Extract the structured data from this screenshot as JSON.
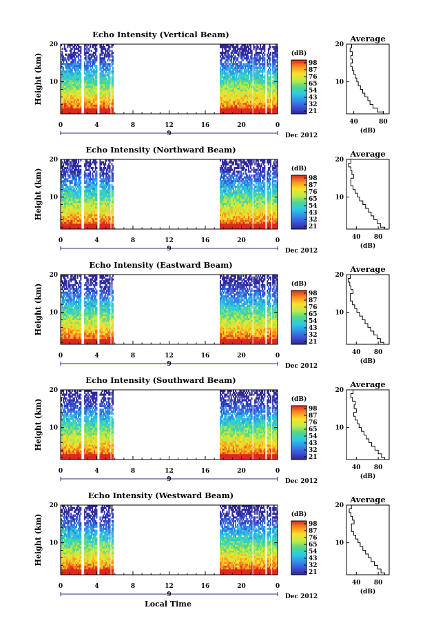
{
  "figure": {
    "xlabel": "Local Time",
    "month_label": "Dec 2012",
    "day_label": "9"
  },
  "chart_data": [
    {
      "type": "heatmap",
      "title": "Echo Intensity (Vertical Beam)",
      "ylabel": "Height (km)",
      "x_ticks": [
        "0",
        "4",
        "8",
        "12",
        "16",
        "20",
        "0"
      ],
      "y_ticks": [
        "20",
        "10"
      ],
      "xlim": [
        0,
        24
      ],
      "ylim": [
        1.5,
        20
      ],
      "data_segments_hours": [
        [
          0,
          2.2
        ],
        [
          2.6,
          4.0
        ],
        [
          4.3,
          5.5
        ],
        [
          5.6,
          5.8
        ],
        [
          17.6,
          21.1
        ],
        [
          21.3,
          22.6
        ],
        [
          22.8,
          23.2
        ],
        [
          23.4,
          24
        ]
      ],
      "colorbar": {
        "label": "(dB)",
        "ticks": [
          "98",
          "87",
          "76",
          "65",
          "54",
          "43",
          "32",
          "21"
        ],
        "range": [
          21,
          98
        ]
      },
      "average_profile": {
        "title": "Average",
        "xlabel": "(dB)",
        "x_ticks": [
          "40",
          "80"
        ],
        "xlim": [
          30,
          88
        ],
        "y_ticks": [
          "20",
          "10"
        ],
        "height_km": [
          1.5,
          2,
          3,
          4,
          5,
          6,
          7,
          8,
          9,
          10,
          11,
          12,
          13,
          14,
          15,
          16,
          17,
          18,
          19,
          20
        ],
        "value_db": [
          88,
          80,
          72,
          66,
          62,
          59,
          55,
          52,
          49,
          46,
          44,
          42,
          40,
          38,
          36,
          38,
          36,
          38,
          35,
          37
        ]
      }
    },
    {
      "type": "heatmap",
      "title": "Echo Intensity (Northward Beam)",
      "ylabel": "Height (km)",
      "x_ticks": [
        "0",
        "4",
        "8",
        "12",
        "16",
        "20",
        "0"
      ],
      "y_ticks": [
        "20",
        "10"
      ],
      "xlim": [
        0,
        24
      ],
      "ylim": [
        1.5,
        20
      ],
      "data_segments_hours": [
        [
          0,
          2.2
        ],
        [
          2.6,
          4.0
        ],
        [
          4.3,
          5.5
        ],
        [
          5.6,
          5.8
        ],
        [
          17.6,
          21.1
        ],
        [
          21.3,
          22.6
        ],
        [
          22.8,
          23.2
        ],
        [
          23.4,
          24
        ]
      ],
      "colorbar": {
        "label": "(dB)",
        "ticks": [
          "98",
          "87",
          "76",
          "65",
          "54",
          "43",
          "32",
          "21"
        ],
        "range": [
          21,
          98
        ]
      },
      "average_profile": {
        "title": "Average",
        "xlabel": "(dB)",
        "x_ticks": [
          "40",
          "80"
        ],
        "xlim": [
          22,
          100
        ],
        "y_ticks": [
          "20",
          "10"
        ],
        "height_km": [
          1.5,
          2,
          3,
          4,
          5,
          6,
          7,
          8,
          9,
          10,
          11,
          12,
          13,
          14,
          15,
          16,
          17,
          18,
          19,
          20
        ],
        "value_db": [
          96,
          92,
          84,
          78,
          72,
          67,
          62,
          57,
          52,
          46,
          42,
          38,
          34,
          30,
          30,
          35,
          32,
          30,
          26,
          30
        ]
      }
    },
    {
      "type": "heatmap",
      "title": "Echo Intensity (Eastward Beam)",
      "ylabel": "Height (km)",
      "x_ticks": [
        "0",
        "4",
        "8",
        "12",
        "16",
        "20",
        "0"
      ],
      "y_ticks": [
        "20",
        "10"
      ],
      "xlim": [
        0,
        24
      ],
      "ylim": [
        1.5,
        20
      ],
      "data_segments_hours": [
        [
          0,
          2.2
        ],
        [
          2.6,
          4.0
        ],
        [
          4.3,
          5.5
        ],
        [
          5.6,
          5.8
        ],
        [
          17.6,
          21.1
        ],
        [
          21.3,
          22.6
        ],
        [
          22.8,
          23.2
        ],
        [
          23.4,
          24
        ]
      ],
      "colorbar": {
        "label": "(dB)",
        "ticks": [
          "98",
          "87",
          "76",
          "65",
          "54",
          "43",
          "32",
          "21"
        ],
        "range": [
          21,
          98
        ]
      },
      "average_profile": {
        "title": "Average",
        "xlabel": "(dB)",
        "x_ticks": [
          "40",
          "80"
        ],
        "xlim": [
          22,
          100
        ],
        "y_ticks": [
          "20",
          "10"
        ],
        "height_km": [
          1.5,
          2,
          3,
          4,
          5,
          6,
          7,
          8,
          9,
          10,
          11,
          12,
          13,
          14,
          15,
          16,
          17,
          18,
          19,
          20
        ],
        "value_db": [
          96,
          90,
          84,
          78,
          72,
          66,
          61,
          56,
          51,
          46,
          41,
          37,
          33,
          29,
          29,
          34,
          30,
          28,
          25,
          29
        ]
      }
    },
    {
      "type": "heatmap",
      "title": "Echo Intensity (Southward Beam)",
      "ylabel": "Height (km)",
      "x_ticks": [
        "0",
        "4",
        "8",
        "12",
        "16",
        "20",
        "0"
      ],
      "y_ticks": [
        "20",
        "10"
      ],
      "xlim": [
        0,
        24
      ],
      "ylim": [
        1.5,
        20
      ],
      "data_segments_hours": [
        [
          0,
          2.2
        ],
        [
          2.6,
          4.0
        ],
        [
          4.3,
          5.5
        ],
        [
          5.6,
          5.8
        ],
        [
          17.6,
          21.1
        ],
        [
          21.3,
          22.6
        ],
        [
          22.8,
          23.2
        ],
        [
          23.4,
          24
        ]
      ],
      "colorbar": {
        "label": "(dB)",
        "ticks": [
          "98",
          "87",
          "76",
          "65",
          "54",
          "43",
          "32",
          "21"
        ],
        "range": [
          21,
          98
        ]
      },
      "average_profile": {
        "title": "Average",
        "xlabel": "(dB)",
        "x_ticks": [
          "40",
          "80"
        ],
        "xlim": [
          22,
          100
        ],
        "y_ticks": [
          "20",
          "10"
        ],
        "height_km": [
          1.5,
          2,
          3,
          4,
          5,
          6,
          7,
          8,
          9,
          10,
          11,
          12,
          13,
          14,
          15,
          16,
          17,
          18,
          19,
          20
        ],
        "value_db": [
          96,
          92,
          86,
          80,
          74,
          68,
          63,
          58,
          54,
          49,
          45,
          42,
          38,
          35,
          40,
          36,
          38,
          33,
          30,
          34
        ]
      }
    },
    {
      "type": "heatmap",
      "title": "Echo Intensity (Westward Beam)",
      "ylabel": "Height (km)",
      "x_ticks": [
        "0",
        "4",
        "8",
        "12",
        "16",
        "20",
        "0"
      ],
      "y_ticks": [
        "20",
        "10"
      ],
      "xlim": [
        0,
        24
      ],
      "ylim": [
        1.5,
        20
      ],
      "data_segments_hours": [
        [
          0,
          2.2
        ],
        [
          2.6,
          4.0
        ],
        [
          4.3,
          5.5
        ],
        [
          5.6,
          5.8
        ],
        [
          17.6,
          21.1
        ],
        [
          21.3,
          22.6
        ],
        [
          22.8,
          23.2
        ],
        [
          23.4,
          24
        ]
      ],
      "colorbar": {
        "label": "(dB)",
        "ticks": [
          "98",
          "87",
          "76",
          "65",
          "54",
          "43",
          "32",
          "21"
        ],
        "range": [
          21,
          98
        ]
      },
      "average_profile": {
        "title": "Average",
        "xlabel": "(dB)",
        "x_ticks": [
          "40",
          "80"
        ],
        "xlim": [
          22,
          100
        ],
        "y_ticks": [
          "20",
          "10"
        ],
        "height_km": [
          1.5,
          2,
          3,
          4,
          5,
          6,
          7,
          8,
          9,
          10,
          11,
          12,
          13,
          14,
          15,
          16,
          17,
          18,
          19,
          20
        ],
        "value_db": [
          96,
          92,
          85,
          79,
          73,
          67,
          62,
          57,
          52,
          47,
          43,
          39,
          35,
          31,
          31,
          36,
          33,
          30,
          27,
          31
        ]
      }
    }
  ]
}
